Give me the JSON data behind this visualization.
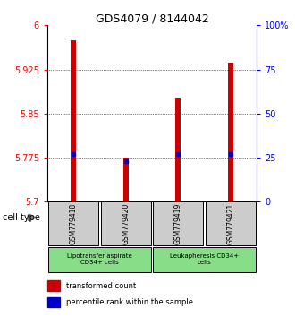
{
  "title": "GDS4079 / 8144042",
  "samples": [
    "GSM779418",
    "GSM779420",
    "GSM779419",
    "GSM779421"
  ],
  "red_values": [
    5.975,
    5.775,
    5.877,
    5.937
  ],
  "blue_values": [
    27,
    23,
    27,
    27
  ],
  "ylim_left": [
    5.7,
    6.0
  ],
  "ylim_right": [
    0,
    100
  ],
  "left_ticks": [
    5.7,
    5.775,
    5.85,
    5.925,
    6.0
  ],
  "right_ticks": [
    0,
    25,
    50,
    75,
    100
  ],
  "right_tick_labels": [
    "0",
    "25",
    "50",
    "75",
    "100%"
  ],
  "bar_color": "#cc0000",
  "marker_color": "#0000cc",
  "group_labels": [
    "Lipotransfer aspirate\nCD34+ cells",
    "Leukapheresis CD34+\ncells"
  ],
  "group_colors": [
    "#cceecc",
    "#88dd88"
  ],
  "cell_type_label": "cell type",
  "legend_red": "transformed count",
  "legend_blue": "percentile rank within the sample",
  "bg_color": "#ffffff",
  "xlabel_gray_bg": "#cccccc"
}
